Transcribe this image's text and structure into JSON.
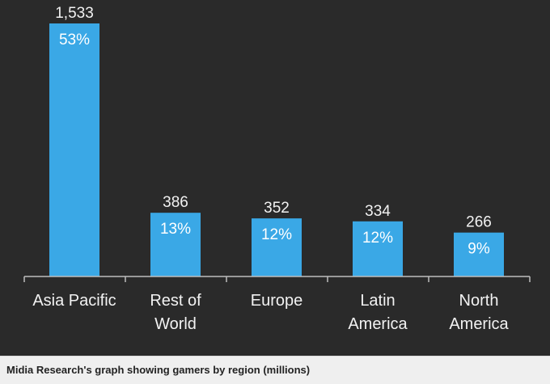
{
  "chart_data": {
    "type": "bar",
    "categories": [
      [
        "Asia Pacific"
      ],
      [
        "Rest of",
        "World"
      ],
      [
        "Europe"
      ],
      [
        "Latin",
        "America"
      ],
      [
        "North",
        "America"
      ]
    ],
    "values": [
      1533,
      386,
      352,
      334,
      266
    ],
    "value_labels": [
      "1,533",
      "386",
      "352",
      "334",
      "266"
    ],
    "percent_labels": [
      "53%",
      "13%",
      "12%",
      "12%",
      "9%"
    ],
    "ylim": [
      0,
      1533
    ],
    "grid": false,
    "bar_color": "#3aa8e6",
    "background_color": "#2a2a2a",
    "text_color": "#f2f2f2"
  },
  "caption": "Midia Research's graph showing gamers by region (millions)"
}
